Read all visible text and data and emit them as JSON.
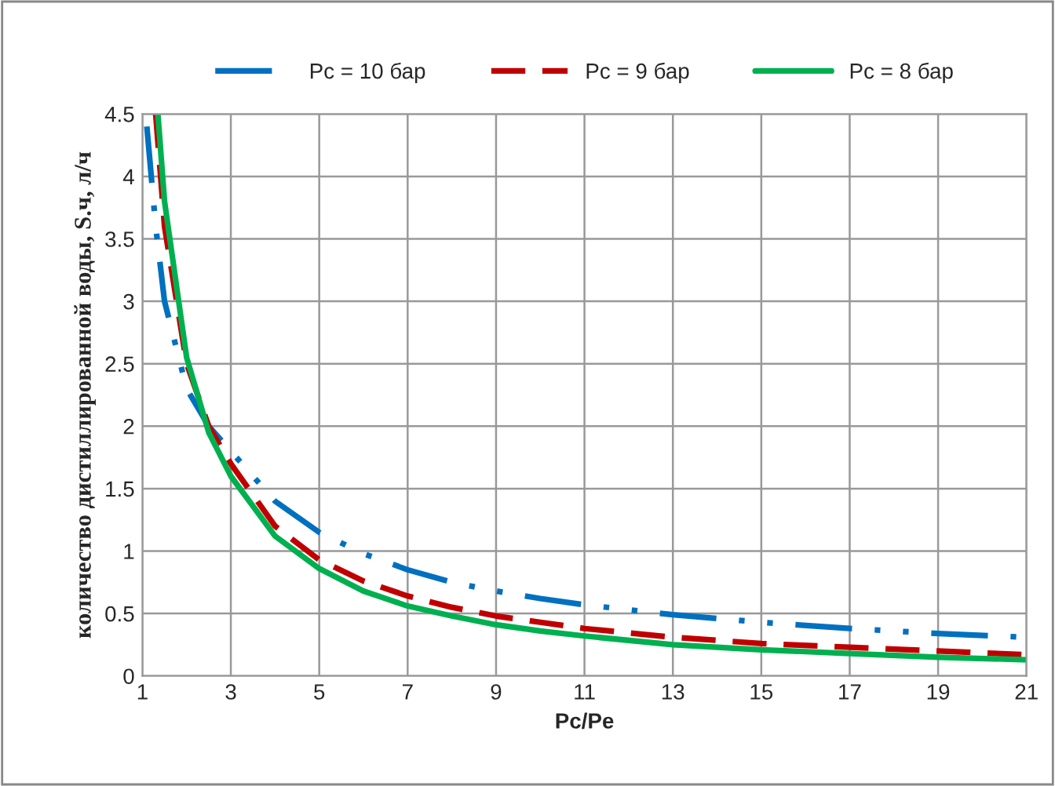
{
  "chart_data": {
    "type": "line",
    "xlabel": "Pc/Pe",
    "ylabel": "количество дистиллированной воды, S.ч, л/ч",
    "xlim": [
      1,
      21
    ],
    "xticks": [
      1,
      3,
      5,
      7,
      9,
      11,
      13,
      15,
      17,
      19,
      21
    ],
    "ylim": [
      0,
      4.5
    ],
    "yticks": [
      0,
      0.5,
      1,
      1.5,
      2,
      2.5,
      3,
      3.5,
      4,
      4.5
    ],
    "grid": true,
    "legend": "top",
    "marker": "none",
    "series": [
      {
        "name": "Pc = 10 бар",
        "color": "#0070c0",
        "line_style": "dashdot",
        "x": [
          1.1,
          1.3,
          1.5,
          2,
          2.5,
          3,
          4,
          5,
          6,
          7,
          8,
          9,
          10,
          11,
          13,
          15,
          17,
          19,
          21
        ],
        "values": [
          4.4,
          3.6,
          3.0,
          2.3,
          2.0,
          1.8,
          1.4,
          1.15,
          0.98,
          0.85,
          0.75,
          0.68,
          0.62,
          0.57,
          0.49,
          0.43,
          0.38,
          0.34,
          0.31
        ]
      },
      {
        "name": "Pc = 9 бар",
        "color": "#c00000",
        "line_style": "dashed",
        "x": [
          1.3,
          1.5,
          2,
          2.5,
          3,
          4,
          5,
          6,
          7,
          8,
          9,
          10,
          11,
          13,
          15,
          17,
          19,
          21
        ],
        "values": [
          4.5,
          3.6,
          2.5,
          2.0,
          1.7,
          1.2,
          0.93,
          0.76,
          0.64,
          0.55,
          0.48,
          0.43,
          0.38,
          0.31,
          0.26,
          0.23,
          0.2,
          0.17
        ]
      },
      {
        "name": "Pc = 8 бар",
        "color": "#00b050",
        "line_style": "solid",
        "x": [
          1.35,
          1.5,
          2,
          2.5,
          3,
          4,
          5,
          6,
          7,
          8,
          9,
          10,
          11,
          13,
          15,
          17,
          19,
          21
        ],
        "values": [
          4.5,
          3.8,
          2.55,
          1.95,
          1.6,
          1.12,
          0.86,
          0.68,
          0.56,
          0.48,
          0.41,
          0.36,
          0.32,
          0.25,
          0.21,
          0.18,
          0.15,
          0.13
        ]
      }
    ]
  }
}
